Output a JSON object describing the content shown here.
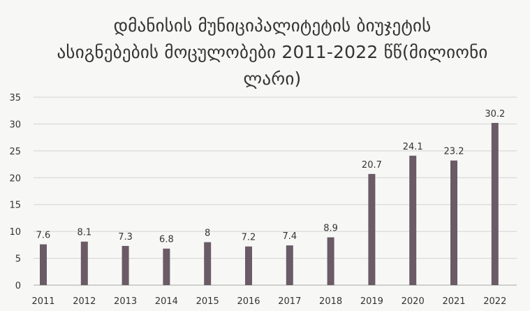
{
  "chart_data": {
    "type": "bar",
    "title": "დმანისის მუნიციპალიტეტის ბიუჯეტის ასიგნებების მოცულობები 2011-2022 წწ(მილიონი ლარი)",
    "title_lines": [
      "დმანისის მუნიციპალიტეტის ბიუჯეტის",
      "ასიგნებების მოცულობები 2011-2022 წწ(მილიონი",
      "ლარი)"
    ],
    "categories": [
      "2011",
      "2012",
      "2013",
      "2014",
      "2015",
      "2016",
      "2017",
      "2018",
      "2019",
      "2020",
      "2021",
      "2022"
    ],
    "values": [
      7.6,
      8.1,
      7.3,
      6.8,
      8,
      7.2,
      7.4,
      8.9,
      20.7,
      24.1,
      23.2,
      30.2
    ],
    "data_labels": [
      "7.6",
      "8.1",
      "7.3",
      "6.8",
      "8",
      "7.2",
      "7.4",
      "8.9",
      "20.7",
      "24.1",
      "23.2",
      "30.2"
    ],
    "ylim": [
      0,
      35
    ],
    "yticks": [
      "0",
      "5",
      "10",
      "15",
      "20",
      "25",
      "30",
      "35"
    ],
    "xlabel": "",
    "ylabel": "",
    "grid": true,
    "colors": {
      "bar": "#6a5b66",
      "grid": "#d3d3d3",
      "axis": "#b9b9b9",
      "text": "#333333"
    }
  }
}
